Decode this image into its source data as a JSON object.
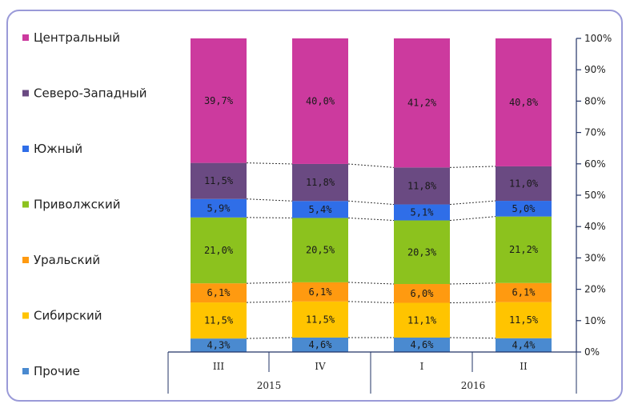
{
  "chart_data": {
    "type": "bar",
    "stacked": true,
    "percent_stacked": true,
    "categories": [
      "III",
      "IV",
      "I",
      "II"
    ],
    "groups": [
      {
        "label": "2015",
        "categories": [
          "III",
          "IV"
        ]
      },
      {
        "label": "2016",
        "categories": [
          "I",
          "II"
        ]
      }
    ],
    "series": [
      {
        "name": "Прочие",
        "color": "#4a8ad0",
        "values": [
          4.3,
          4.6,
          4.6,
          4.4
        ],
        "labels": [
          "4,3%",
          "4,6%",
          "4,6%",
          "4,4%"
        ]
      },
      {
        "name": "Сибирский",
        "color": "#ffc400",
        "values": [
          11.5,
          11.5,
          11.1,
          11.5
        ],
        "labels": [
          "11,5%",
          "11,5%",
          "11,1%",
          "11,5%"
        ]
      },
      {
        "name": "Уральский",
        "color": "#ff9a10",
        "values": [
          6.1,
          6.1,
          6.0,
          6.1
        ],
        "labels": [
          "6,1%",
          "6,1%",
          "6,0%",
          "6,1%"
        ]
      },
      {
        "name": "Приволжский",
        "color": "#8cc21e",
        "values": [
          21.0,
          20.5,
          20.3,
          21.2
        ],
        "labels": [
          "21,0%",
          "20,5%",
          "20,3%",
          "21,2%"
        ]
      },
      {
        "name": "Южный",
        "color": "#2f6ee8",
        "values": [
          5.9,
          5.4,
          5.1,
          5.0
        ],
        "labels": [
          "5,9%",
          "5,4%",
          "5,1%",
          "5,0%"
        ]
      },
      {
        "name": "Северо-Западный",
        "color": "#6a4a82",
        "values": [
          11.5,
          11.8,
          11.8,
          11.0
        ],
        "labels": [
          "11,5%",
          "11,8%",
          "11,8%",
          "11,0%"
        ]
      },
      {
        "name": "Центральный",
        "color": "#cc3a9e",
        "values": [
          39.7,
          40.0,
          41.2,
          40.8
        ],
        "labels": [
          "39,7%",
          "40,0%",
          "41,2%",
          "40,8%"
        ]
      }
    ],
    "yticks": [
      "0%",
      "10%",
      "20%",
      "30%",
      "40%",
      "50%",
      "60%",
      "70%",
      "80%",
      "90%",
      "100%"
    ],
    "ylim": [
      0,
      100
    ],
    "yaxis_position": "right",
    "legend_position": "left",
    "series_lines": true
  }
}
